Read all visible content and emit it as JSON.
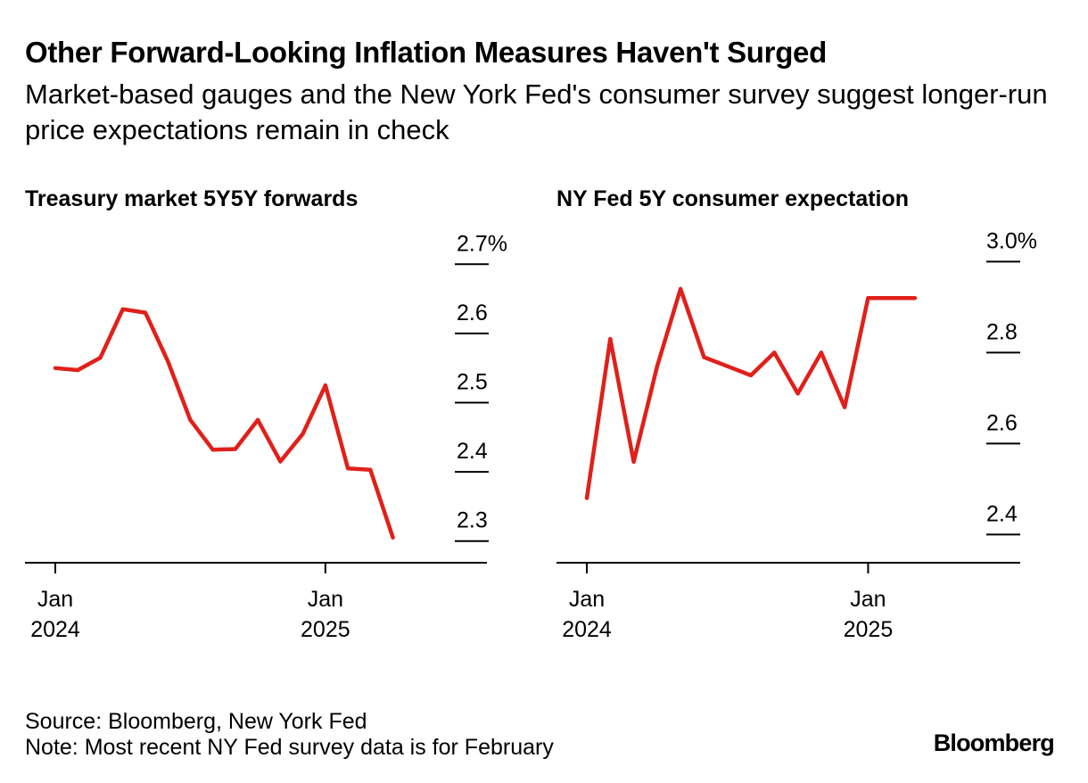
{
  "title": "Other Forward-Looking Inflation Measures Haven't Surged",
  "subtitle": "Market-based gauges and the New York Fed's consumer survey suggest longer-run price expectations remain in check",
  "source": "Source: Bloomberg, New York Fed",
  "note": "Note: Most recent NY Fed survey data is for February",
  "brand": "Bloomberg",
  "colors": {
    "line": "#e0201b",
    "axis": "#000000"
  },
  "chart_data": [
    {
      "type": "line",
      "title": "Treasury market 5Y5Y forwards",
      "x_unit": "months since Jan 2024",
      "x": [
        0,
        1,
        2,
        3,
        4,
        5,
        6,
        7,
        8,
        9,
        10,
        11,
        12,
        13,
        14,
        15
      ],
      "values": [
        2.55,
        2.547,
        2.565,
        2.635,
        2.63,
        2.56,
        2.475,
        2.432,
        2.433,
        2.475,
        2.415,
        2.455,
        2.525,
        2.405,
        2.403,
        2.305
      ],
      "xlim": [
        0,
        16.8
      ],
      "ylim": [
        2.27,
        2.73
      ],
      "yticks": [
        2.3,
        2.4,
        2.5,
        2.6,
        2.7
      ],
      "ytick_labels": [
        "2.3",
        "2.4",
        "2.5",
        "2.6",
        "2.7%"
      ],
      "xticks": [
        0,
        12
      ],
      "xtick_labels": [
        [
          "Jan",
          "2024"
        ],
        [
          "Jan",
          "2025"
        ]
      ]
    },
    {
      "type": "line",
      "title": "NY Fed 5Y consumer expectation",
      "x_unit": "months since Jan 2024",
      "x": [
        0,
        1,
        2,
        3,
        4,
        5,
        6,
        7,
        8,
        9,
        10,
        11,
        12,
        13,
        14
      ],
      "values": [
        2.48,
        2.83,
        2.56,
        2.77,
        2.94,
        2.79,
        2.77,
        2.75,
        2.8,
        2.71,
        2.8,
        2.68,
        2.92,
        2.92,
        2.92
      ],
      "xlim": [
        0,
        17.5
      ],
      "ylim": [
        2.34,
        3.04
      ],
      "yticks": [
        2.4,
        2.6,
        2.8,
        3.0
      ],
      "ytick_labels": [
        "2.4",
        "2.6",
        "2.8",
        "3.0%"
      ],
      "xticks": [
        0,
        12
      ],
      "xtick_labels": [
        [
          "Jan",
          "2024"
        ],
        [
          "Jan",
          "2025"
        ]
      ]
    }
  ]
}
